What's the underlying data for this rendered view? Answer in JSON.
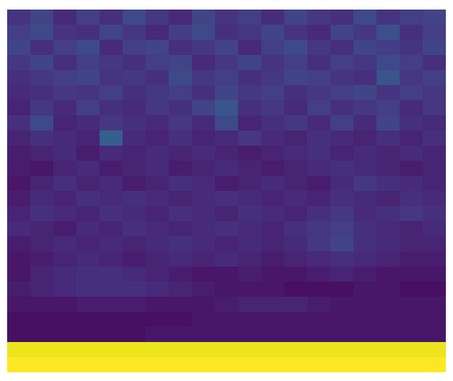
{
  "chart_data": {
    "type": "heatmap",
    "color": "viridis",
    "tick_labels": false,
    "zlim": [
      0,
      1
    ],
    "cells": [
      [
        0.15,
        0.2,
        0.12,
        0.18,
        0.14,
        0.22,
        0.16,
        0.12,
        0.2,
        0.15,
        0.18,
        0.13,
        0.2,
        0.16,
        0.14,
        0.22,
        0.15,
        0.18,
        0.2
      ],
      [
        0.18,
        0.22,
        0.15,
        0.14,
        0.2,
        0.16,
        0.12,
        0.18,
        0.22,
        0.14,
        0.16,
        0.2,
        0.15,
        0.12,
        0.2,
        0.16,
        0.24,
        0.14,
        0.18
      ],
      [
        0.2,
        0.14,
        0.18,
        0.22,
        0.12,
        0.18,
        0.2,
        0.14,
        0.16,
        0.2,
        0.12,
        0.18,
        0.22,
        0.16,
        0.14,
        0.2,
        0.18,
        0.15,
        0.2
      ],
      [
        0.16,
        0.2,
        0.14,
        0.18,
        0.16,
        0.14,
        0.18,
        0.2,
        0.12,
        0.16,
        0.2,
        0.15,
        0.18,
        0.14,
        0.18,
        0.16,
        0.22,
        0.18,
        0.14
      ],
      [
        0.14,
        0.16,
        0.18,
        0.2,
        0.15,
        0.16,
        0.14,
        0.22,
        0.16,
        0.18,
        0.14,
        0.16,
        0.2,
        0.18,
        0.15,
        0.14,
        0.26,
        0.16,
        0.18
      ],
      [
        0.12,
        0.14,
        0.16,
        0.15,
        0.18,
        0.14,
        0.16,
        0.18,
        0.14,
        0.2,
        0.16,
        0.18,
        0.14,
        0.16,
        0.18,
        0.2,
        0.15,
        0.18,
        0.16
      ],
      [
        0.1,
        0.16,
        0.12,
        0.18,
        0.14,
        0.12,
        0.16,
        0.14,
        0.2,
        0.26,
        0.14,
        0.16,
        0.12,
        0.18,
        0.14,
        0.16,
        0.18,
        0.12,
        0.16
      ],
      [
        0.14,
        0.22,
        0.1,
        0.12,
        0.16,
        0.14,
        0.12,
        0.16,
        0.12,
        0.22,
        0.1,
        0.14,
        0.16,
        0.12,
        0.18,
        0.12,
        0.2,
        0.14,
        0.12
      ],
      [
        0.1,
        0.14,
        0.12,
        0.1,
        0.3,
        0.12,
        0.1,
        0.14,
        0.1,
        0.12,
        0.16,
        0.12,
        0.1,
        0.14,
        0.12,
        0.1,
        0.14,
        0.1,
        0.14
      ],
      [
        0.08,
        0.1,
        0.12,
        0.08,
        0.12,
        0.1,
        0.12,
        0.1,
        0.12,
        0.1,
        0.08,
        0.1,
        0.12,
        0.14,
        0.1,
        0.12,
        0.1,
        0.12,
        0.1
      ],
      [
        0.08,
        0.06,
        0.1,
        0.12,
        0.08,
        0.1,
        0.12,
        0.08,
        0.1,
        0.12,
        0.1,
        0.08,
        0.1,
        0.12,
        0.14,
        0.12,
        0.1,
        0.08,
        0.1
      ],
      [
        0.06,
        0.1,
        0.14,
        0.1,
        0.12,
        0.08,
        0.1,
        0.14,
        0.12,
        0.08,
        0.1,
        0.12,
        0.1,
        0.08,
        0.12,
        0.16,
        0.14,
        0.12,
        0.1
      ],
      [
        0.08,
        0.12,
        0.1,
        0.14,
        0.12,
        0.14,
        0.12,
        0.1,
        0.12,
        0.14,
        0.12,
        0.1,
        0.12,
        0.1,
        0.14,
        0.12,
        0.1,
        0.14,
        0.12
      ],
      [
        0.1,
        0.14,
        0.12,
        0.1,
        0.14,
        0.12,
        0.1,
        0.14,
        0.12,
        0.1,
        0.14,
        0.12,
        0.1,
        0.14,
        0.16,
        0.12,
        0.14,
        0.16,
        0.14
      ],
      [
        0.12,
        0.1,
        0.08,
        0.12,
        0.1,
        0.14,
        0.12,
        0.1,
        0.12,
        0.14,
        0.12,
        0.1,
        0.14,
        0.16,
        0.18,
        0.14,
        0.12,
        0.1,
        0.12
      ],
      [
        0.08,
        0.1,
        0.12,
        0.1,
        0.12,
        0.1,
        0.12,
        0.14,
        0.12,
        0.1,
        0.12,
        0.1,
        0.12,
        0.16,
        0.2,
        0.14,
        0.12,
        0.1,
        0.1
      ],
      [
        0.06,
        0.08,
        0.1,
        0.12,
        0.1,
        0.08,
        0.1,
        0.12,
        0.1,
        0.12,
        0.1,
        0.08,
        0.1,
        0.12,
        0.14,
        0.12,
        0.1,
        0.08,
        0.08
      ],
      [
        0.06,
        0.1,
        0.12,
        0.14,
        0.14,
        0.12,
        0.1,
        0.08,
        0.06,
        0.06,
        0.08,
        0.06,
        0.06,
        0.08,
        0.1,
        0.08,
        0.06,
        0.06,
        0.06
      ],
      [
        0.08,
        0.1,
        0.12,
        0.14,
        0.14,
        0.14,
        0.12,
        0.1,
        0.08,
        0.06,
        0.06,
        0.06,
        0.04,
        0.04,
        0.04,
        0.06,
        0.06,
        0.04,
        0.04
      ],
      [
        0.06,
        0.06,
        0.06,
        0.08,
        0.08,
        0.08,
        0.06,
        0.06,
        0.06,
        0.08,
        0.1,
        0.1,
        0.1,
        0.08,
        0.06,
        0.06,
        0.06,
        0.06,
        0.06
      ],
      [
        0.04,
        0.04,
        0.04,
        0.04,
        0.04,
        0.04,
        0.04,
        0.04,
        0.06,
        0.06,
        0.06,
        0.06,
        0.06,
        0.06,
        0.06,
        0.06,
        0.06,
        0.06,
        0.06
      ],
      [
        0.04,
        0.04,
        0.04,
        0.04,
        0.04,
        0.04,
        0.06,
        0.06,
        0.06,
        0.06,
        0.06,
        0.06,
        0.06,
        0.06,
        0.06,
        0.06,
        0.06,
        0.06,
        0.06
      ],
      [
        0.97,
        0.97,
        0.97,
        0.97,
        0.97,
        0.97,
        0.97,
        0.97,
        0.97,
        0.97,
        0.97,
        0.97,
        0.97,
        0.97,
        0.97,
        0.97,
        0.97,
        0.97,
        0.97
      ],
      [
        1,
        1,
        1,
        1,
        1,
        1,
        1,
        1,
        1,
        1,
        1,
        1,
        1,
        1,
        1,
        1,
        1,
        1,
        1
      ]
    ]
  }
}
